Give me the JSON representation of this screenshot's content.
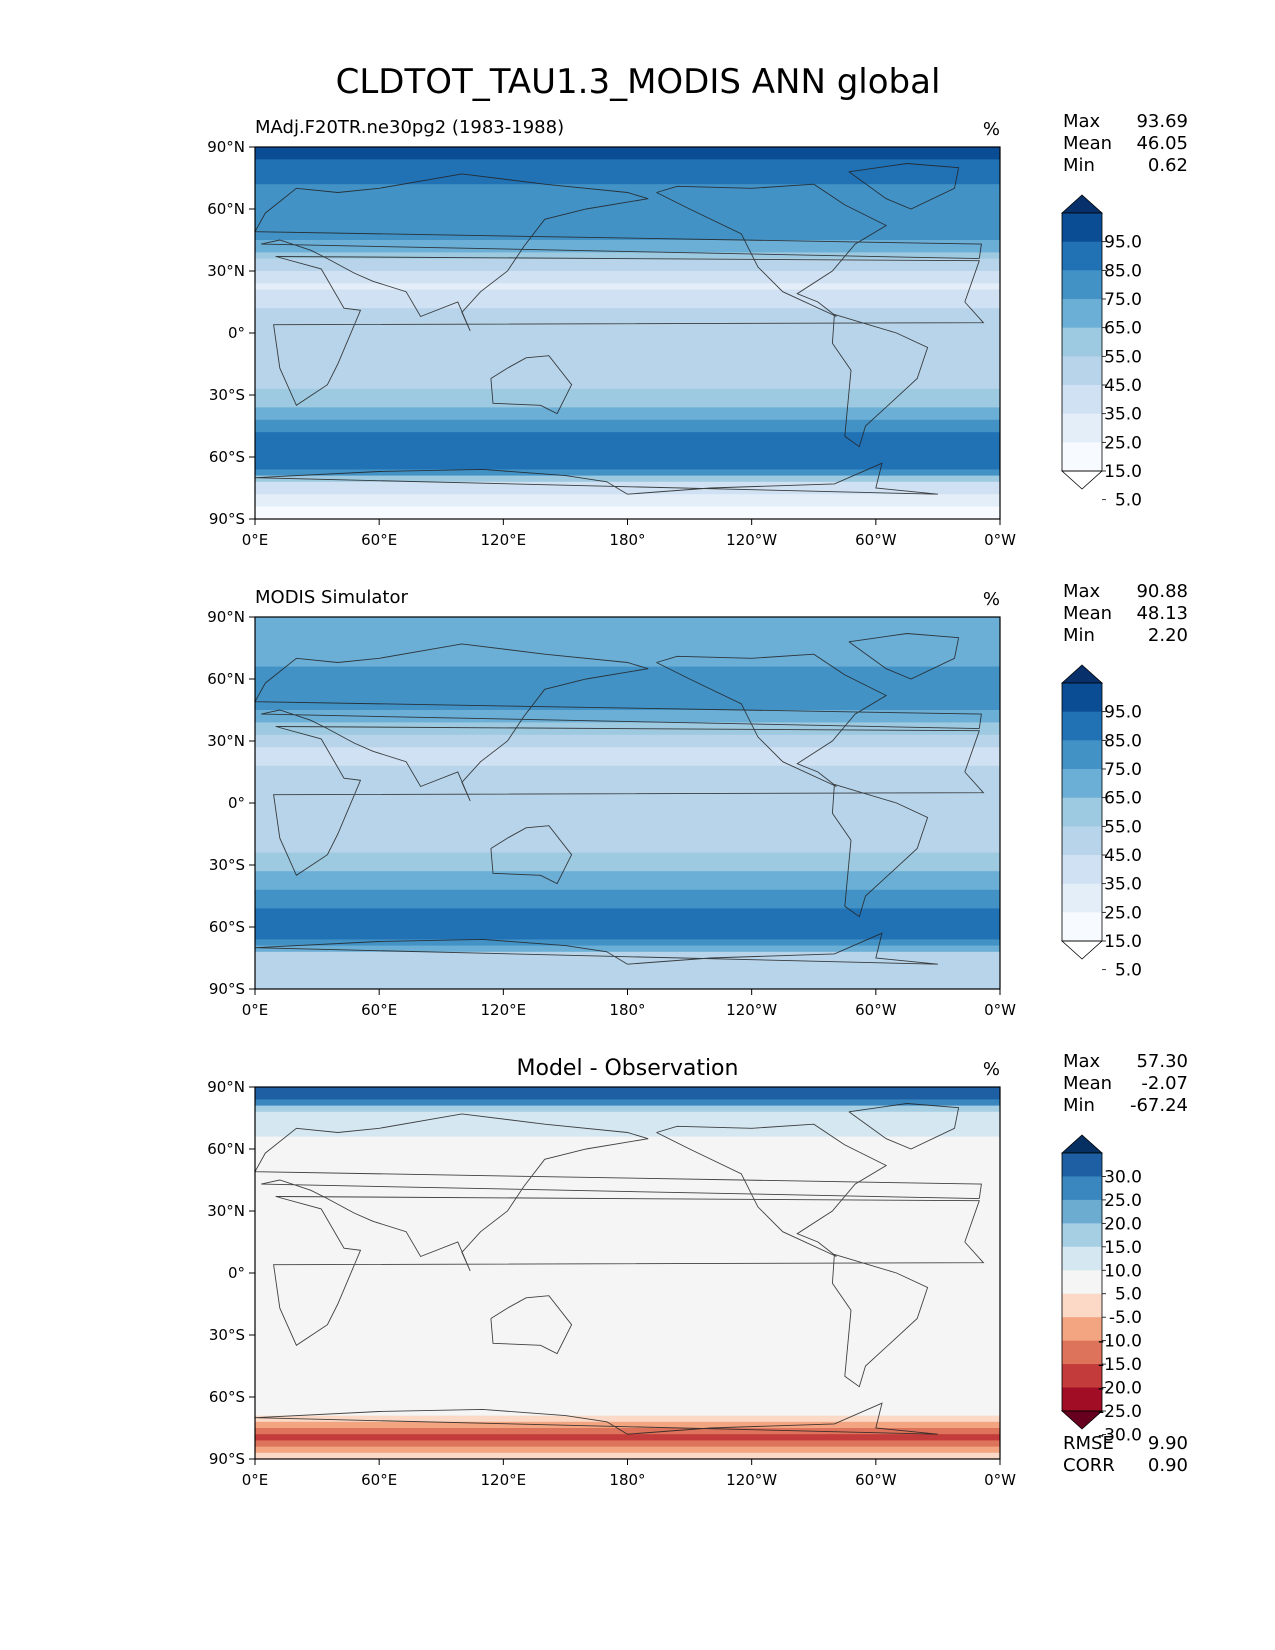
{
  "figure": {
    "title": "CLDTOT_TAU1.3_MODIS ANN global"
  },
  "chart_data": [
    {
      "type": "heatmap",
      "title": "MAdj.F20TR.ne30pg2 (1983-1988)",
      "units": "%",
      "stats": {
        "max_label": "Max",
        "max": "93.69",
        "mean_label": "Mean",
        "mean": "46.05",
        "min_label": "Min",
        "min": "0.62"
      },
      "x_ticks": [
        "0°E",
        "60°E",
        "120°E",
        "180°",
        "120°W",
        "60°W",
        "0°W"
      ],
      "y_ticks": [
        "90°N",
        "60°N",
        "30°N",
        "0°",
        "30°S",
        "60°S",
        "90°S"
      ],
      "xlim": [
        0,
        360
      ],
      "ylim": [
        -90,
        90
      ],
      "colorbar": {
        "labels": [
          "95.0",
          "85.0",
          "75.0",
          "65.0",
          "55.0",
          "45.0",
          "35.0",
          "25.0",
          "15.0",
          "5.0"
        ],
        "colors": [
          "#08306b",
          "#0b4d94",
          "#2171b5",
          "#4292c6",
          "#6baed6",
          "#9ecae1",
          "#b7d4ea",
          "#cfe1f2",
          "#e3eef9",
          "#f7fbff",
          "#ffffff"
        ],
        "extend": "both"
      },
      "lat_profile": [
        [
          90,
          88
        ],
        [
          78,
          80
        ],
        [
          66,
          70
        ],
        [
          55,
          75
        ],
        [
          45,
          68
        ],
        [
          35,
          42
        ],
        [
          22,
          22
        ],
        [
          10,
          40
        ],
        [
          0,
          38
        ],
        [
          -10,
          42
        ],
        [
          -20,
          38
        ],
        [
          -32,
          48
        ],
        [
          -45,
          72
        ],
        [
          -58,
          84
        ],
        [
          -66,
          82
        ],
        [
          -74,
          30
        ],
        [
          -90,
          8
        ]
      ]
    },
    {
      "type": "heatmap",
      "title": "MODIS Simulator",
      "units": "%",
      "stats": {
        "max_label": "Max",
        "max": "90.88",
        "mean_label": "Mean",
        "mean": "48.13",
        "min_label": "Min",
        "min": "2.20"
      },
      "x_ticks": [
        "0°E",
        "60°E",
        "120°E",
        "180°",
        "120°W",
        "60°W",
        "0°W"
      ],
      "y_ticks": [
        "90°N",
        "60°N",
        "30°N",
        "0°",
        "30°S",
        "60°S",
        "90°S"
      ],
      "xlim": [
        0,
        360
      ],
      "ylim": [
        -90,
        90
      ],
      "colorbar": {
        "labels": [
          "95.0",
          "85.0",
          "75.0",
          "65.0",
          "55.0",
          "45.0",
          "35.0",
          "25.0",
          "15.0",
          "5.0"
        ],
        "colors": [
          "#08306b",
          "#0b4d94",
          "#2171b5",
          "#4292c6",
          "#6baed6",
          "#9ecae1",
          "#b7d4ea",
          "#cfe1f2",
          "#e3eef9",
          "#f7fbff",
          "#ffffff"
        ],
        "extend": "both"
      },
      "lat_profile": [
        [
          90,
          62
        ],
        [
          78,
          62
        ],
        [
          66,
          64
        ],
        [
          55,
          72
        ],
        [
          45,
          66
        ],
        [
          35,
          46
        ],
        [
          22,
          28
        ],
        [
          10,
          44
        ],
        [
          0,
          44
        ],
        [
          -10,
          45
        ],
        [
          -20,
          42
        ],
        [
          -32,
          52
        ],
        [
          -45,
          70
        ],
        [
          -58,
          80
        ],
        [
          -66,
          76
        ],
        [
          -74,
          40
        ],
        [
          -90,
          35
        ]
      ]
    },
    {
      "type": "heatmap",
      "title": "Model - Observation",
      "units": "%",
      "stats": {
        "max_label": "Max",
        "max": "57.30",
        "mean_label": "Mean",
        "mean": "-2.07",
        "min_label": "Min",
        "min": "-67.24"
      },
      "metrics": {
        "rmse_label": "RMSE",
        "rmse": "9.90",
        "corr_label": "CORR",
        "corr": "0.90"
      },
      "x_ticks": [
        "0°E",
        "60°E",
        "120°E",
        "180°",
        "120°W",
        "60°W",
        "0°W"
      ],
      "y_ticks": [
        "90°N",
        "60°N",
        "30°N",
        "0°",
        "30°S",
        "60°S",
        "90°S"
      ],
      "xlim": [
        0,
        360
      ],
      "ylim": [
        -90,
        90
      ],
      "colorbar": {
        "labels": [
          "30.0",
          "25.0",
          "20.0",
          "15.0",
          "10.0",
          "5.0",
          "-5.0",
          "-10.0",
          "-15.0",
          "-20.0",
          "-25.0",
          "-30.0"
        ],
        "colors": [
          "#053061",
          "#1e5fa4",
          "#3a87c0",
          "#6cacd1",
          "#a7cfe4",
          "#d5e7f1",
          "#f5f5f5",
          "#fbd9c6",
          "#f3a582",
          "#de735c",
          "#c33b3a",
          "#a00d24",
          "#67001f"
        ],
        "extend": "both"
      },
      "lat_profile": [
        [
          90,
          30
        ],
        [
          84,
          26
        ],
        [
          78,
          10
        ],
        [
          68,
          6
        ],
        [
          55,
          2
        ],
        [
          40,
          0
        ],
        [
          20,
          -2
        ],
        [
          5,
          -4
        ],
        [
          0,
          -3
        ],
        [
          -10,
          -2
        ],
        [
          -30,
          0
        ],
        [
          -50,
          2
        ],
        [
          -60,
          1
        ],
        [
          -68,
          -4
        ],
        [
          -74,
          -12
        ],
        [
          -80,
          -22
        ],
        [
          -90,
          -6
        ]
      ]
    }
  ]
}
